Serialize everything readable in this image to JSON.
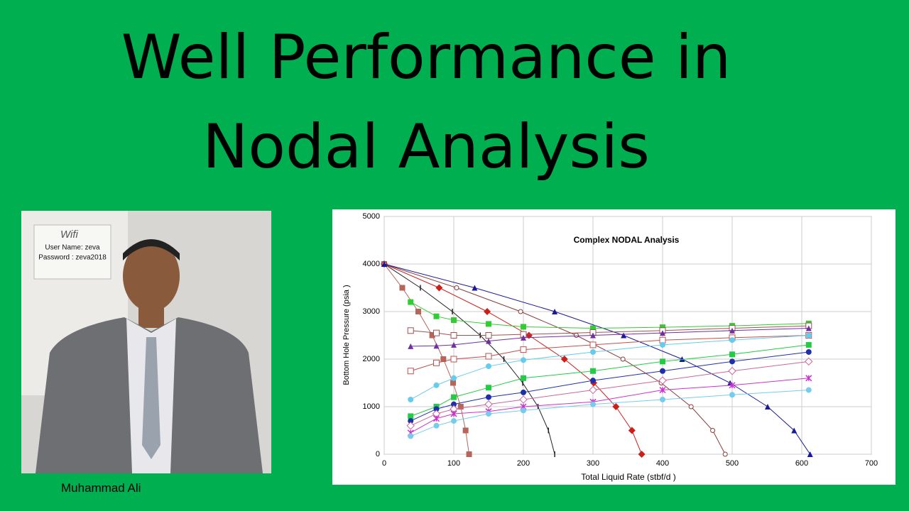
{
  "header": {
    "title_lines": [
      "Well Performance in",
      "Nodal Analysis"
    ]
  },
  "photo": {
    "note_lines": [
      "Wifi",
      "User Name: zeva",
      "Password : zeva2018"
    ],
    "caption": "Muhammad Ali"
  },
  "chart_data": {
    "type": "line",
    "title": "Complex NODAL Analysis",
    "x_label": "Total Liquid Rate (stbf/d )",
    "y_label": "Bottom Hole Pressure (psia )",
    "xlim": [
      0,
      700
    ],
    "xticks": [
      0,
      100,
      200,
      300,
      400,
      500,
      600,
      700
    ],
    "ylim": [
      0,
      5000
    ],
    "yticks": [
      0,
      1000,
      2000,
      3000,
      4000,
      5000
    ],
    "grid": true,
    "series": [
      {
        "color": "#b5655a",
        "marker": "square",
        "x": [
          0,
          26,
          49,
          69,
          85,
          99,
          110,
          117,
          122
        ],
        "values": [
          4000,
          3500,
          3000,
          2500,
          2000,
          1500,
          1000,
          500,
          0
        ]
      },
      {
        "color": "#222222",
        "marker": "dash",
        "x": [
          0,
          52,
          98,
          138,
          172,
          199,
          221,
          236,
          245
        ],
        "values": [
          4000,
          3500,
          3000,
          2500,
          2000,
          1500,
          1000,
          500,
          0
        ]
      },
      {
        "color": "#cc1f1a",
        "marker": "diamond",
        "x": [
          0,
          79,
          148,
          208,
          259,
          301,
          333,
          356,
          370
        ],
        "values": [
          4000,
          3500,
          3000,
          2500,
          2000,
          1500,
          1000,
          500,
          0
        ]
      },
      {
        "color": "#8b3a3a",
        "marker": "open-circle",
        "x": [
          0,
          104,
          196,
          276,
          343,
          398,
          441,
          472,
          490
        ],
        "values": [
          4000,
          3500,
          3000,
          2500,
          2000,
          1500,
          1000,
          500,
          0
        ]
      },
      {
        "color": "#1a1a99",
        "marker": "triangle",
        "x": [
          0,
          130,
          245,
          344,
          428,
          497,
          551,
          589,
          612
        ],
        "values": [
          4000,
          3500,
          3000,
          2500,
          2000,
          1500,
          1000,
          500,
          0
        ]
      },
      {
        "color": "#33cc33",
        "marker": "square",
        "x": [
          38,
          75,
          100,
          150,
          200,
          300,
          400,
          500,
          610
        ],
        "values": [
          3200,
          2900,
          2820,
          2740,
          2680,
          2650,
          2670,
          2700,
          2750
        ]
      },
      {
        "color": "#a05050",
        "marker": "open-square",
        "x": [
          38,
          75,
          100,
          150,
          200,
          300,
          400,
          500,
          610
        ],
        "values": [
          2600,
          2550,
          2500,
          2500,
          2520,
          2560,
          2600,
          2650,
          2700
        ]
      },
      {
        "color": "#7030a0",
        "marker": "triangle",
        "x": [
          38,
          75,
          100,
          150,
          200,
          300,
          400,
          500,
          610
        ],
        "values": [
          2270,
          2280,
          2300,
          2380,
          2450,
          2500,
          2550,
          2600,
          2650
        ]
      },
      {
        "color": "#c0504d",
        "marker": "open-square",
        "x": [
          38,
          75,
          100,
          150,
          200,
          300,
          400,
          500,
          610
        ],
        "values": [
          1750,
          1920,
          2000,
          2060,
          2200,
          2300,
          2400,
          2450,
          2500
        ]
      },
      {
        "color": "#66ccee",
        "marker": "circle",
        "x": [
          38,
          75,
          100,
          150,
          200,
          300,
          400,
          500,
          610
        ],
        "values": [
          1150,
          1450,
          1600,
          1850,
          1980,
          2150,
          2300,
          2400,
          2500
        ]
      },
      {
        "color": "#22cc44",
        "marker": "square",
        "x": [
          38,
          75,
          100,
          150,
          200,
          300,
          400,
          500,
          610
        ],
        "values": [
          800,
          1000,
          1200,
          1400,
          1600,
          1750,
          1950,
          2100,
          2300
        ]
      },
      {
        "color": "#1f2faa",
        "marker": "circle",
        "x": [
          38,
          75,
          100,
          150,
          200,
          300,
          400,
          500,
          610
        ],
        "values": [
          700,
          950,
          1050,
          1200,
          1300,
          1550,
          1750,
          1950,
          2150
        ]
      },
      {
        "color": "#cc6699",
        "marker": "open-diamond",
        "x": [
          38,
          75,
          100,
          150,
          200,
          300,
          400,
          500,
          610
        ],
        "values": [
          600,
          850,
          950,
          1050,
          1150,
          1350,
          1550,
          1750,
          1950
        ]
      },
      {
        "color": "#cc33cc",
        "marker": "star",
        "x": [
          38,
          75,
          100,
          150,
          200,
          300,
          400,
          500,
          610
        ],
        "values": [
          450,
          750,
          850,
          900,
          1000,
          1100,
          1350,
          1450,
          1600
        ]
      },
      {
        "color": "#77ccee",
        "marker": "circle",
        "x": [
          38,
          75,
          100,
          150,
          200,
          300,
          400,
          500,
          610
        ],
        "values": [
          380,
          600,
          700,
          850,
          920,
          1050,
          1150,
          1250,
          1350
        ]
      }
    ]
  }
}
